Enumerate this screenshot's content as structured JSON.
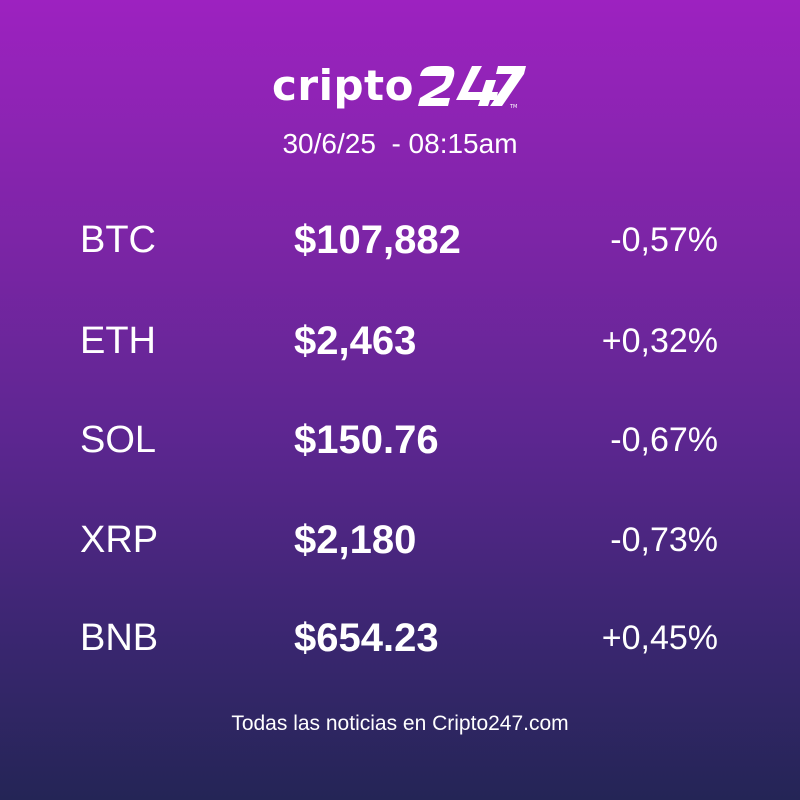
{
  "brand": {
    "logo_text": "cripto",
    "logo_mark": "247"
  },
  "timestamp": "30/6/25  - 08:15am",
  "prices": [
    {
      "symbol": "BTC",
      "price": "$107,882",
      "change": "-0,57%"
    },
    {
      "symbol": "ETH",
      "price": "$2,463",
      "change": "+0,32%"
    },
    {
      "symbol": "SOL",
      "price": "$150.76",
      "change": "-0,67%"
    },
    {
      "symbol": "XRP",
      "price": "$2,180",
      "change": "-0,73%"
    },
    {
      "symbol": "BNB",
      "price": "$654.23",
      "change": "+0,45%"
    }
  ],
  "footer": "Todas las noticias en Cripto247.com",
  "colors": {
    "gradient_top": "#9d22c0",
    "gradient_bottom": "#242556",
    "text": "#ffffff"
  }
}
